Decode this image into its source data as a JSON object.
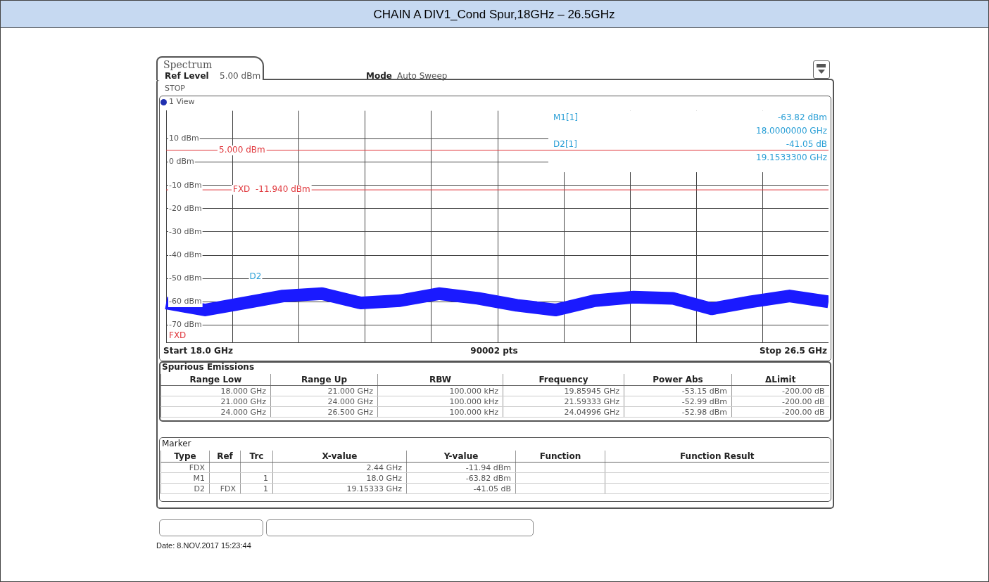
{
  "chart_data": {
    "type": "line",
    "title": "CHAIN A DIV1_Cond Spur,18GHz – 26.5GHz",
    "categories": [
      null,
      null,
      null,
      null,
      null,
      null,
      null,
      null,
      null,
      null,
      null,
      null,
      null,
      null,
      null,
      null,
      null,
      null
    ],
    "series": [
      {
        "color": "#1a1aff",
        "values": [
          -60.5,
          -63.5,
          -60.5,
          -57.5,
          -56.5,
          -60.5,
          -59.5,
          -56.5,
          -58.5,
          -61.5,
          -63.5,
          -59.5,
          -58,
          -58.5,
          -63,
          -60,
          -57.5,
          -60
        ]
      }
    ],
    "ylim": [
      -77.5,
      22
    ],
    "yticks": [
      {
        "value": 10,
        "label": "10 dBm"
      },
      {
        "value": 0,
        "label": "0 dBm"
      },
      {
        "value": -10,
        "label": "-10 dBm"
      },
      {
        "value": -20,
        "label": "-20 dBm"
      },
      {
        "value": -30,
        "label": "-30 dBm"
      },
      {
        "value": -40,
        "label": "-40 dBm"
      },
      {
        "value": -50,
        "label": "-50 dBm"
      },
      {
        "value": -60,
        "label": "-60 dBm"
      },
      {
        "value": -70,
        "label": "-70 dBm"
      }
    ],
    "tick_labels": "y",
    "grid": true,
    "legend": false,
    "ref_lines": [
      {
        "axis": "y",
        "value": 5,
        "label": "5.000 dBm",
        "color": "#e0393e"
      },
      {
        "axis": "y",
        "value": -11.94,
        "label": "FXD  -11.940 dBm",
        "color": "#e0393e"
      }
    ],
    "annotations": [
      "Spectrum",
      "Ref Level\t5.00 dBm",
      "Mode\tAuto Sweep",
      "STOP",
      "1 View",
      "M1[1]\t-63.82 dBm",
      "18.0000000 GHz",
      "D2[1]\t-41.05 dB",
      "19.1533300 GHz",
      "Start 18.0 GHz",
      "90002 pts",
      "Stop 26.5 GHz",
      "Spurious Emissions",
      "Range Low\tRange Up\tRBW\tFrequency\tPower Abs\tΔLimit",
      "18.000 GHz\t21.000 GHz\t100.000 kHz\t19.85945 GHz\t-53.15 dBm\t-200.00 dB",
      "21.000 GHz\t24.000 GHz\t100.000 kHz\t21.59333 GHz\t-52.99 dBm\t-200.00 dB",
      "24.000 GHz\t26.500 GHz\t100.000 kHz\t24.04996 GHz\t-52.98 dBm\t-200.00 dB",
      "Marker",
      "Type\tRef\tTrc\tX-value\tY-value\tFunction\tFunction Result",
      "FDX\t\t\t2.44 GHz\t-11.94 dBm\t\t",
      "M1\t\t1\t18.0 GHz\t-63.82 dBm\t\t",
      "D2\tFDX\t1\t19.15333 GHz\t-41.05 dB\t\t",
      "Date: 8.NOV.2017  15:23:44",
      "D2",
      "FXD"
    ]
  }
}
